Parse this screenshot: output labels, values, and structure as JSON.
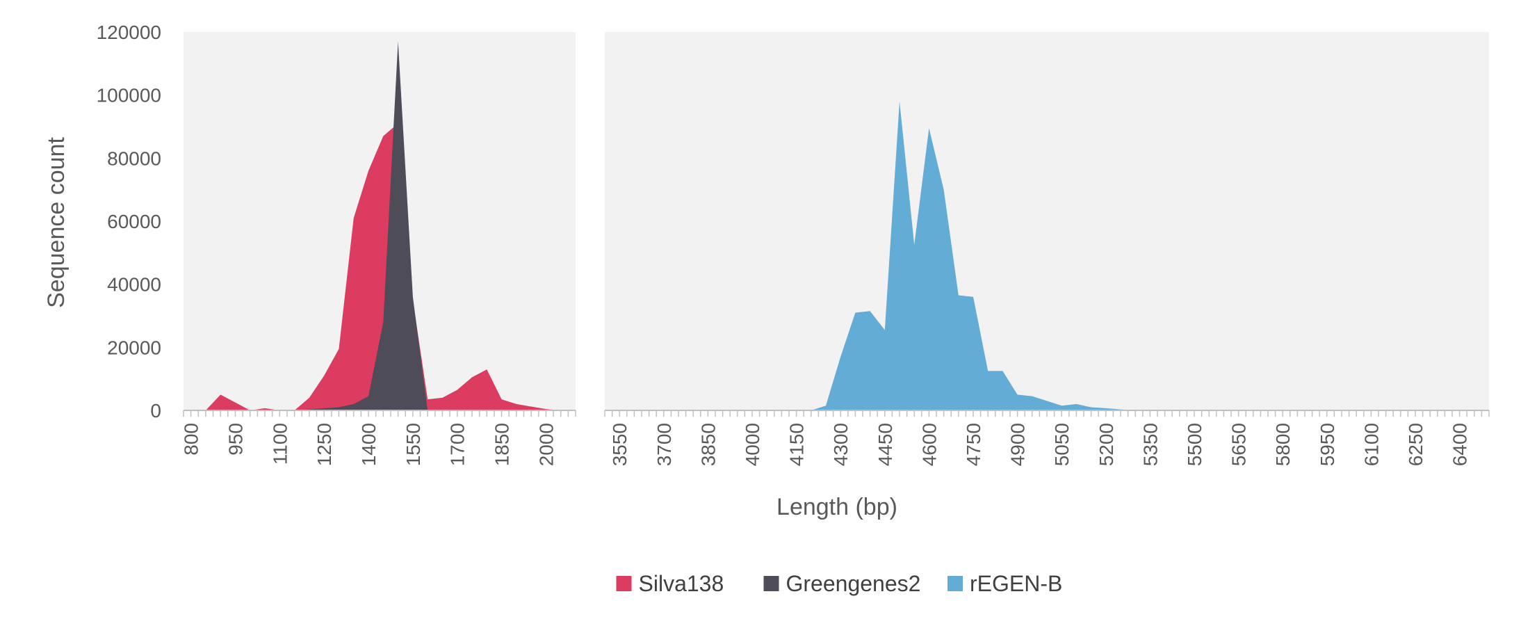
{
  "chart_data": {
    "type": "area",
    "xlabel": "Length (bp)",
    "ylabel": "Sequence count",
    "ylim": [
      0,
      120000
    ],
    "yticks": [
      0,
      20000,
      40000,
      60000,
      80000,
      100000,
      120000
    ],
    "ytick_labels": [
      "0",
      "20000",
      "40000",
      "60000",
      "80000",
      "100000",
      "120000"
    ],
    "grid": false,
    "legend_position": "bottom",
    "panels": [
      {
        "name": "left",
        "xlim": [
          775,
          2100
        ],
        "xticks": [
          800,
          950,
          1100,
          1250,
          1400,
          1550,
          1700,
          1850,
          2000
        ],
        "xtick_labels": [
          "800",
          "950",
          "1100",
          "1250",
          "1400",
          "1550",
          "1700",
          "1850",
          "2000"
        ]
      },
      {
        "name": "right",
        "xlim": [
          3500,
          6500
        ],
        "xticks": [
          3550,
          3700,
          3850,
          4000,
          4150,
          4300,
          4450,
          4600,
          4750,
          4900,
          5050,
          5200,
          5350,
          5500,
          5650,
          5800,
          5950,
          6100,
          6250,
          6400
        ],
        "xtick_labels": [
          "3550",
          "3700",
          "3850",
          "4000",
          "4150",
          "4300",
          "4450",
          "4600",
          "4750",
          "4900",
          "5050",
          "5200",
          "5350",
          "5500",
          "5650",
          "5800",
          "5950",
          "6100",
          "6250",
          "6400"
        ]
      }
    ],
    "series": [
      {
        "name": "Silva138",
        "color": "#dc3c5f",
        "panel": "left",
        "x": [
          850,
          900,
          950,
          1000,
          1050,
          1100,
          1150,
          1200,
          1250,
          1300,
          1350,
          1400,
          1450,
          1500,
          1550,
          1600,
          1650,
          1700,
          1750,
          1800,
          1850,
          1900,
          1950,
          2000,
          2050
        ],
        "y": [
          0,
          5000,
          2500,
          0,
          700,
          0,
          0,
          4000,
          11000,
          19500,
          61000,
          76000,
          87000,
          91000,
          35000,
          3500,
          4000,
          6500,
          10500,
          13000,
          3500,
          2000,
          1200,
          400,
          0
        ]
      },
      {
        "name": "Greengenes2",
        "color": "#4d4c58",
        "panel": "left",
        "x": [
          1150,
          1300,
          1350,
          1400,
          1450,
          1500,
          1550,
          1600,
          1650
        ],
        "y": [
          0,
          1000,
          2000,
          4500,
          28000,
          117000,
          36000,
          0,
          0
        ]
      },
      {
        "name": "rEGEN-B",
        "color": "#63acd6",
        "panel": "right",
        "x": [
          4200,
          4250,
          4300,
          4350,
          4400,
          4450,
          4500,
          4550,
          4600,
          4650,
          4700,
          4750,
          4800,
          4850,
          4900,
          4950,
          5000,
          5050,
          5100,
          5150,
          5200,
          5250,
          5300
        ],
        "y": [
          0,
          1500,
          17000,
          31000,
          31500,
          25500,
          98000,
          52500,
          89500,
          70000,
          36500,
          36000,
          12500,
          12500,
          5000,
          4500,
          3000,
          1500,
          2000,
          1000,
          700,
          300,
          0
        ]
      }
    ]
  }
}
